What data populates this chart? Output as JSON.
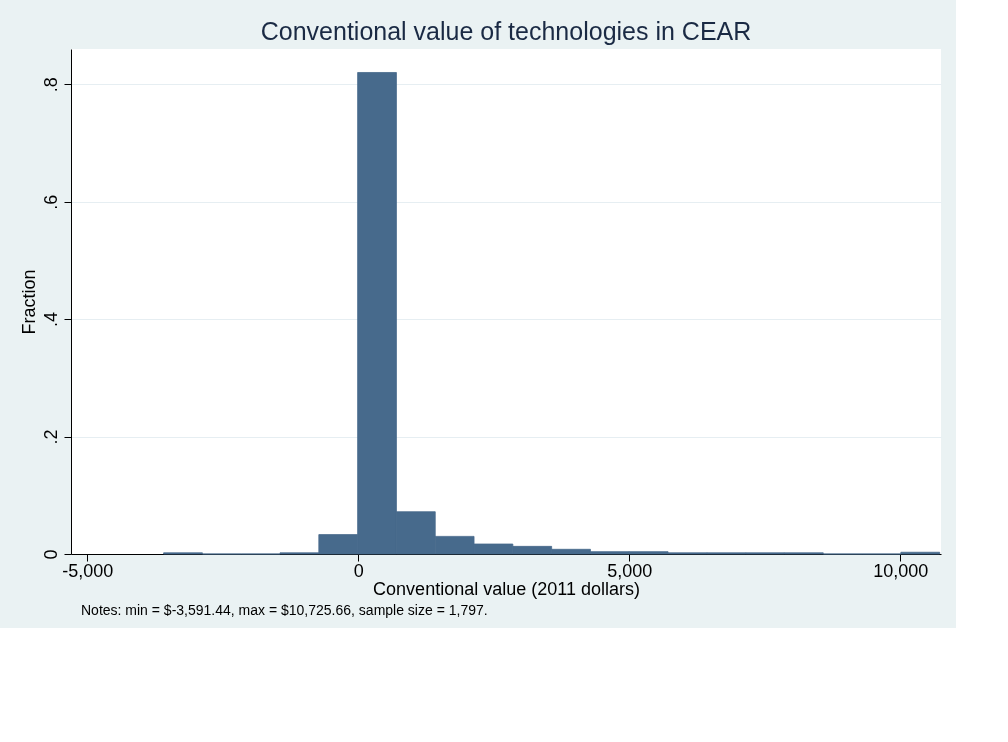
{
  "chart_data": {
    "type": "histogram",
    "title": "Conventional value of technologies in CEAR",
    "xlabel": "Conventional value (2011 dollars)",
    "ylabel": "Fraction",
    "annotations": [
      "Notes: min = $-3,591.44, max = $10,725.66, sample size = 1,797."
    ],
    "bins": [
      -3591.44,
      -2875.585,
      -2159.73,
      -1443.875,
      -728.02,
      -12.165,
      703.69,
      1419.545,
      2135.4,
      2851.255,
      3567.11,
      4282.965,
      4998.82,
      5714.675,
      6430.53,
      7146.385,
      7862.24,
      8578.095,
      9293.95,
      10009.805,
      10725.66
    ],
    "values": [
      0.002,
      0,
      0,
      0.002,
      0.033,
      0.82,
      0.072,
      0.03,
      0.017,
      0.013,
      0.008,
      0.004,
      0.004,
      0.002,
      0.002,
      0.002,
      0.002,
      0,
      0,
      0.003
    ],
    "color": "#476a8c",
    "xlim": [
      -5300,
      10750
    ],
    "xticks": [
      {
        "value": -5000,
        "label": "-5,000"
      },
      {
        "value": 0,
        "label": "0"
      },
      {
        "value": 5000,
        "label": "5,000"
      },
      {
        "value": 10000,
        "label": "10,000"
      }
    ],
    "ylim": [
      0,
      0.86
    ],
    "yticks": [
      {
        "value": 0,
        "label": "0"
      },
      {
        "value": 0.2,
        "label": ".2"
      },
      {
        "value": 0.4,
        "label": ".4"
      },
      {
        "value": 0.6,
        "label": ".6"
      },
      {
        "value": 0.8,
        "label": ".8"
      }
    ],
    "grid": "y"
  }
}
